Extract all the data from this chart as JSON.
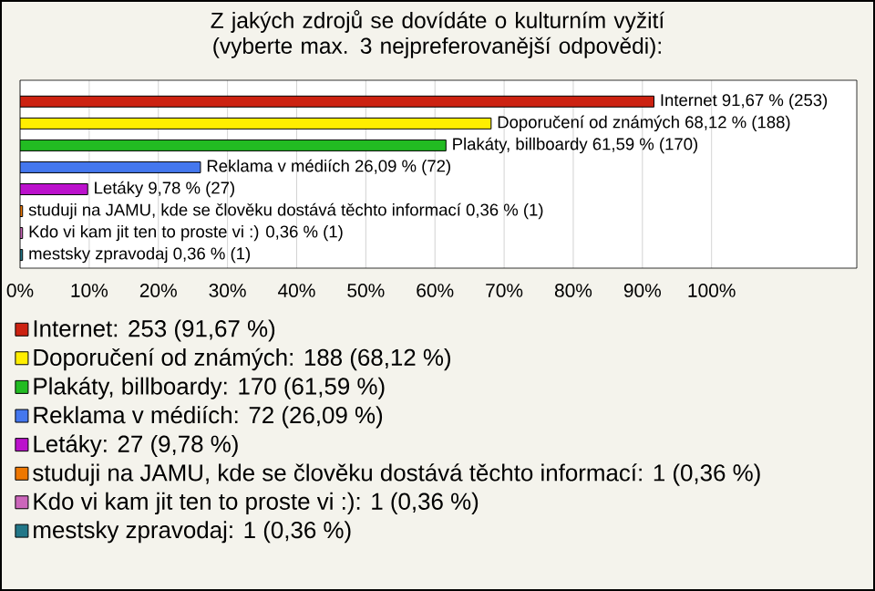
{
  "chart_data": {
    "type": "bar",
    "orientation": "horizontal",
    "title": "Z jakých zdrojů se dovídáte o kulturním vyžití (vyberte max. 3 nejpreferovanější odpovědi):",
    "categories": [
      null,
      null,
      null,
      null,
      null,
      null,
      null,
      null
    ],
    "series": [
      {
        "name": "Internet: 253 (91,67 %)",
        "color": "#cc2211",
        "values": [
          91.67,
          null,
          null,
          null,
          null,
          null,
          null,
          null
        ],
        "value_labels": [
          "Internet 91,67 % (253)",
          null,
          null,
          null,
          null,
          null,
          null,
          null
        ]
      },
      {
        "name": "Doporučení od známých: 188 (68,12 %)",
        "color": "#ffee00",
        "values": [
          null,
          68.12,
          null,
          null,
          null,
          null,
          null,
          null
        ],
        "value_labels": [
          null,
          "Doporučení od známých 68,12 % (188)",
          null,
          null,
          null,
          null,
          null,
          null
        ]
      },
      {
        "name": "Plakáty, billboardy: 170 (61,59 %)",
        "color": "#22bb22",
        "values": [
          null,
          null,
          61.59,
          null,
          null,
          null,
          null,
          null
        ],
        "value_labels": [
          null,
          null,
          "Plakáty, billboardy 61,59 % (170)",
          null,
          null,
          null,
          null,
          null
        ]
      },
      {
        "name": "Reklama v médiích: 72 (26,09 %)",
        "color": "#4477ee",
        "values": [
          null,
          null,
          null,
          26.09,
          null,
          null,
          null,
          null
        ],
        "value_labels": [
          null,
          null,
          null,
          "Reklama v médiích 26,09 % (72)",
          null,
          null,
          null,
          null
        ]
      },
      {
        "name": "Letáky: 27 (9,78 %)",
        "color": "#bb11cc",
        "values": [
          null,
          null,
          null,
          null,
          9.78,
          null,
          null,
          null
        ],
        "value_labels": [
          null,
          null,
          null,
          null,
          "Letáky 9,78 % (27)",
          null,
          null,
          null
        ]
      },
      {
        "name": "studuji na JAMU, kde se člověku dostává těchto informací: 1 (0,36 %)",
        "color": "#ee7700",
        "values": [
          null,
          null,
          null,
          null,
          null,
          0.36,
          null,
          null
        ],
        "value_labels": [
          null,
          null,
          null,
          null,
          null,
          "studuji na JAMU, kde se člověku dostává těchto informací 0,36 % (1)",
          null,
          null
        ]
      },
      {
        "name": "Kdo vi kam jit ten to proste vi :): 1 (0,36 %)",
        "color": "#cc66bb",
        "values": [
          null,
          null,
          null,
          null,
          null,
          null,
          0.36,
          null
        ],
        "value_labels": [
          null,
          null,
          null,
          null,
          null,
          null,
          "Kdo vi kam jit ten to proste vi :) 0,36 % (1)",
          null
        ]
      },
      {
        "name": "mestsky zpravodaj: 1 (0,36 %)",
        "color": "#227788",
        "values": [
          null,
          null,
          null,
          null,
          null,
          null,
          null,
          0.36
        ],
        "value_labels": [
          null,
          null,
          null,
          null,
          null,
          null,
          null,
          "mestsky zpravodaj 0,36 % (1)"
        ]
      }
    ],
    "xlim": [
      0,
      121
    ],
    "xticks": [
      {
        "value": 0,
        "label": "0%"
      },
      {
        "value": 10,
        "label": "10%"
      },
      {
        "value": 20,
        "label": "20%"
      },
      {
        "value": 30,
        "label": "30%"
      },
      {
        "value": 40,
        "label": "40%"
      },
      {
        "value": 50,
        "label": "50%"
      },
      {
        "value": 60,
        "label": "60%"
      },
      {
        "value": 70,
        "label": "70%"
      },
      {
        "value": 80,
        "label": "80%"
      },
      {
        "value": 90,
        "label": "90%"
      },
      {
        "value": 100,
        "label": "100%"
      }
    ],
    "grid": "x",
    "legend": "bottom",
    "tick_labels": "x"
  }
}
